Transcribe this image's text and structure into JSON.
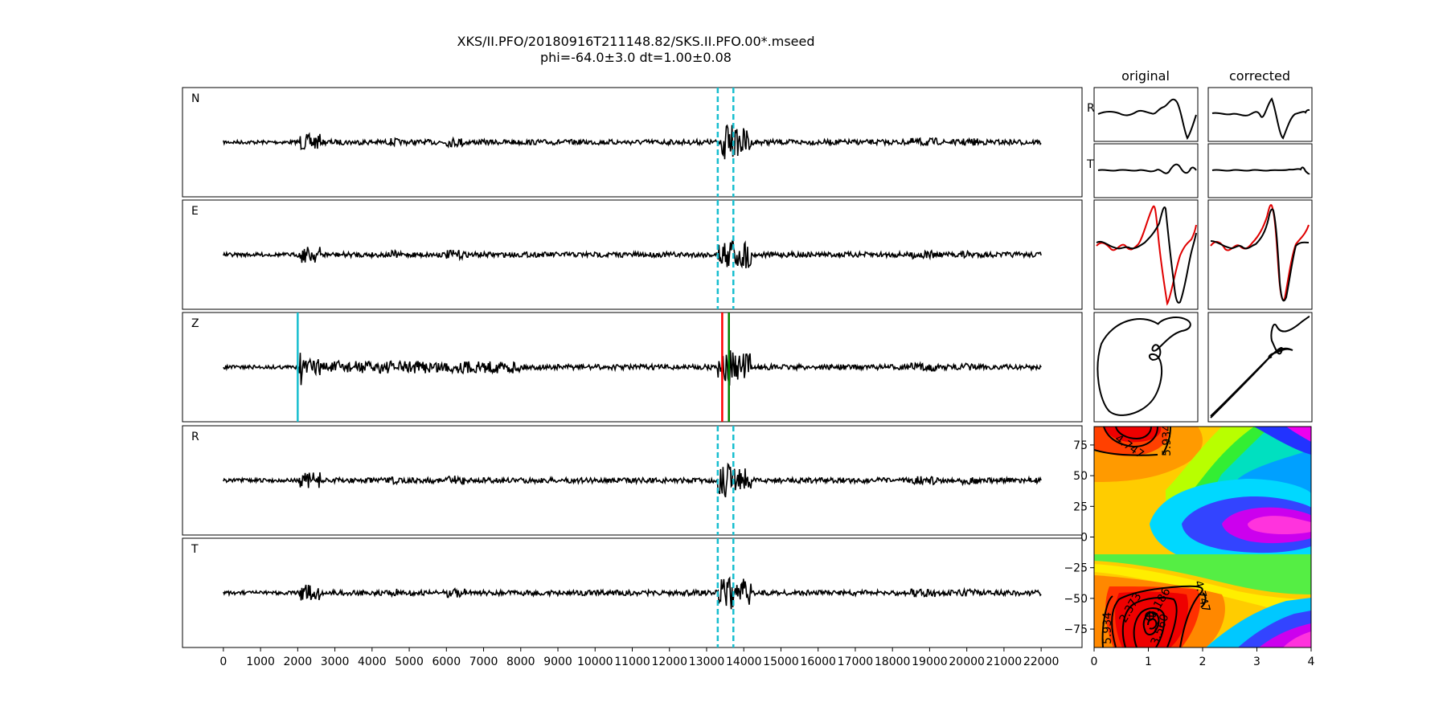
{
  "title": "XKS/II.PFO/20180916T211148.82/SKS.II.PFO.00*.mseed",
  "subtitle": "phi=-64.0±3.0 dt=1.00±0.08",
  "column_titles": {
    "original": "original",
    "corrected": "corrected"
  },
  "small_panel_labels": {
    "r": "R",
    "t": "T"
  },
  "contour_labels": [
    "4.747",
    "5.934",
    "4.747",
    "2.373",
    "5.934",
    "1.186",
    "3.560"
  ],
  "chart_data": [
    {
      "type": "line",
      "panel": "seismograms",
      "traces": [
        "N",
        "E",
        "Z",
        "R",
        "T"
      ],
      "x_ticks": [
        0,
        1000,
        2000,
        3000,
        4000,
        5000,
        6000,
        7000,
        8000,
        9000,
        10000,
        11000,
        12000,
        13000,
        14000,
        15000,
        16000,
        17000,
        18000,
        19000,
        20000,
        21000,
        22000
      ],
      "xlim": [
        -1100,
        23100
      ],
      "data_range": [
        0,
        22000
      ],
      "window_lines": [
        13300,
        13720
      ],
      "z_markers": [
        {
          "x": 2000,
          "color": "#17becf"
        },
        {
          "x": 13420,
          "color": "#ff0000"
        },
        {
          "x": 13600,
          "color": "#008000"
        }
      ]
    },
    {
      "type": "heatmap",
      "panel": "error-surface",
      "x_ticks": [
        0,
        1,
        2,
        3,
        4
      ],
      "y_ticks": [
        75,
        50,
        25,
        0,
        -25,
        -50,
        -75
      ],
      "xlim": [
        0,
        4
      ],
      "ylim": [
        -90,
        90
      ],
      "best_fit": {
        "dt": 1.0,
        "phi": -64.0
      }
    }
  ]
}
